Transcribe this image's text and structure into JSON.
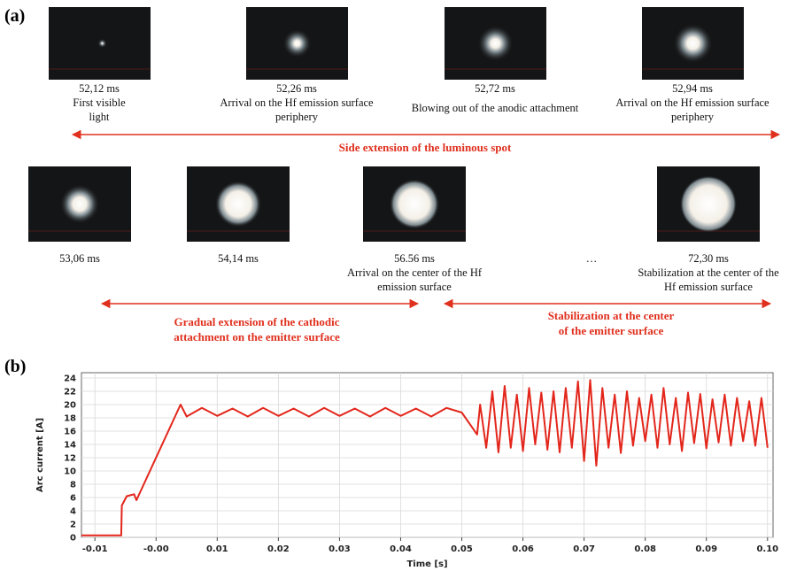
{
  "panel_a": {
    "label": "(a)",
    "row1": [
      {
        "time": "52,12 ms",
        "caption": [
          "First visible",
          "light"
        ]
      },
      {
        "time": "52,26 ms",
        "caption": [
          "Arrival on the Hf emission surface",
          "periphery"
        ]
      },
      {
        "time": "52,72 ms",
        "caption": [
          "Blowing out of the anodic attachment"
        ]
      },
      {
        "time": "52,94 ms",
        "caption": [
          "Arrival on the Hf emission surface",
          "periphery"
        ]
      }
    ],
    "arrow1": "Side extension of the luminous spot",
    "row2": [
      {
        "time": "53,06 ms"
      },
      {
        "time": "54,14 ms"
      },
      {
        "time": "56.56 ms",
        "caption": [
          "Arrival on the center of the Hf",
          "emission surface"
        ]
      },
      {
        "time": "72,30 ms",
        "caption": [
          "Stabilization at the center of the",
          "Hf emission surface"
        ]
      }
    ],
    "ellipsis": "…",
    "arrow2": [
      "Gradual extension of the cathodic",
      "attachment on the emitter surface"
    ],
    "arrow3": [
      "Stabilization at the center",
      "of the emitter surface"
    ]
  },
  "panel_b_label": "(b)",
  "chart_data": {
    "type": "line",
    "x_label": "Time [s]",
    "y_label": "Arc current [A]",
    "color": "#e3261b",
    "xlim": [
      -0.0122,
      0.1009
    ],
    "ylim": [
      0,
      24.8
    ],
    "xticks": [
      -0.01,
      {
        "value": 0,
        "label": "-0.00"
      },
      0.01,
      0.02,
      0.03,
      0.04,
      0.05,
      0.06,
      0.07,
      0.08,
      0.09,
      {
        "value": 0.1,
        "label": "0.10"
      }
    ],
    "yticks": [
      0,
      2,
      4,
      6,
      8,
      10,
      12,
      14,
      16,
      18,
      20,
      22,
      24
    ],
    "grid": true,
    "x": [
      -0.0122,
      -0.0057,
      -0.0056,
      -0.0048,
      -0.0036,
      -0.0032,
      0.004,
      0.005,
      0.0075,
      0.01,
      0.0125,
      0.015,
      0.0175,
      0.02,
      0.0225,
      0.025,
      0.0275,
      0.03,
      0.0325,
      0.035,
      0.0375,
      0.04,
      0.0425,
      0.045,
      0.0475,
      0.05,
      0.0525,
      0.053,
      0.054,
      0.055,
      0.056,
      0.057,
      0.058,
      0.059,
      0.06,
      0.061,
      0.062,
      0.063,
      0.064,
      0.065,
      0.066,
      0.067,
      0.068,
      0.069,
      0.07,
      0.071,
      0.072,
      0.073,
      0.074,
      0.075,
      0.076,
      0.077,
      0.078,
      0.079,
      0.08,
      0.081,
      0.082,
      0.083,
      0.084,
      0.085,
      0.086,
      0.087,
      0.088,
      0.089,
      0.09,
      0.091,
      0.092,
      0.093,
      0.094,
      0.095,
      0.096,
      0.097,
      0.098,
      0.099,
      0.1
    ],
    "values": [
      0.3,
      0.3,
      4.8,
      6.2,
      6.5,
      5.6,
      20,
      18.2,
      19.5,
      18.3,
      19.4,
      18.2,
      19.5,
      18.3,
      19.4,
      18.2,
      19.5,
      18.3,
      19.4,
      18.2,
      19.5,
      18.3,
      19.4,
      18.2,
      19.5,
      18.8,
      15.5,
      20,
      13.5,
      22,
      12.8,
      22.8,
      13.5,
      21.5,
      13,
      22.5,
      14,
      21.8,
      13.2,
      22,
      12.8,
      22.5,
      13.5,
      23.5,
      11.5,
      23.7,
      10.8,
      22.5,
      13.5,
      21.5,
      12.7,
      22,
      13.8,
      21,
      14.5,
      21.5,
      13.5,
      22.5,
      14,
      21,
      13,
      21.8,
      14.2,
      21.6,
      13.4,
      20.8,
      14.3,
      21.5,
      13.8,
      21,
      14.5,
      20.5,
      13.8,
      21,
      13.5
    ]
  }
}
